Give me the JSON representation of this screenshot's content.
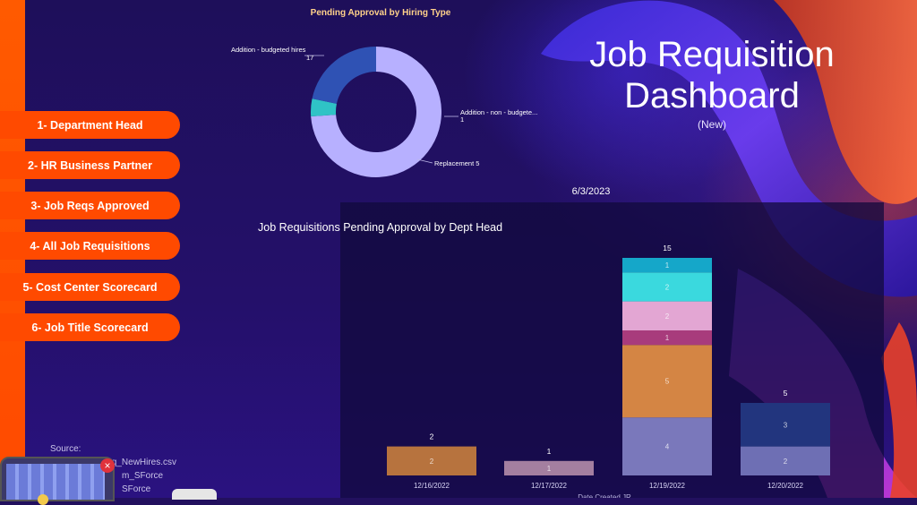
{
  "nav": {
    "items": [
      {
        "label": "1- Department Head"
      },
      {
        "label": "2- HR Business Partner"
      },
      {
        "label": "3- Job Reqs Approved"
      },
      {
        "label": "4- All Job Requisitions"
      },
      {
        "label": "5- Cost Center Scorecard"
      },
      {
        "label": "6- Job Title Scorecard"
      }
    ]
  },
  "header": {
    "title_line1": "Job Requisition",
    "title_line2": "Dashboard",
    "subtitle": "(New)",
    "date": "6/3/2023"
  },
  "source": {
    "label": "Source:",
    "files": [
      "Req_NewHires.csv",
      "m_SForce",
      "SForce"
    ]
  },
  "colors": {
    "accent_orange": "#ff4a00",
    "donut_title": "#ffd18a"
  },
  "chart_data": [
    {
      "type": "pie",
      "title": "Pending Approval by Hiring Type",
      "donut": true,
      "slices": [
        {
          "label": "Addition - budgeted hires",
          "value": 17,
          "color": "#b7b0ff"
        },
        {
          "label": "Addition - non - budgete...",
          "value": 1,
          "color": "#2fc3c6"
        },
        {
          "label": "Replacement",
          "value": 5,
          "color": "#2f52b4"
        }
      ]
    },
    {
      "type": "bar",
      "stacked": true,
      "title": "Job Requisitions Pending Approval by Dept Head",
      "xlabel": "Date Created JR",
      "categories": [
        "12/16/2022",
        "12/17/2022",
        "12/19/2022",
        "12/20/2022"
      ],
      "totals": [
        2,
        1,
        15,
        5
      ],
      "ylim": [
        0,
        15
      ],
      "segments": [
        [
          {
            "value": 2,
            "color": "#b7733e"
          }
        ],
        [
          {
            "value": 1,
            "color": "#a47fa0"
          }
        ],
        [
          {
            "value": 4,
            "color": "#7a78bb"
          },
          {
            "value": 5,
            "color": "#d48544"
          },
          {
            "value": 1,
            "color": "#a83b7c"
          },
          {
            "value": 2,
            "color": "#e3a6d3"
          },
          {
            "value": 2,
            "color": "#3ad9de"
          },
          {
            "value": 1,
            "color": "#15a7c9"
          }
        ],
        [
          {
            "value": 2,
            "color": "#6e6fb4"
          },
          {
            "value": 3,
            "color": "#22357e"
          }
        ]
      ]
    }
  ]
}
